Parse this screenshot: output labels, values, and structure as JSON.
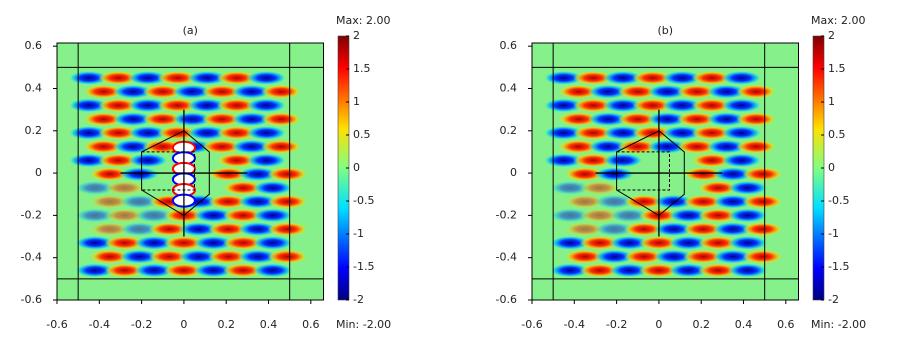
{
  "chart_data": [
    {
      "type": "field",
      "title": "(a)",
      "xlim": [
        -0.6,
        0.66
      ],
      "ylim": [
        -0.6,
        0.615
      ],
      "xticks": [
        -0.6,
        -0.4,
        -0.2,
        0,
        0.2,
        0.4,
        0.6
      ],
      "yticks": [
        -0.6,
        -0.4,
        -0.2,
        0,
        0.2,
        0.4,
        0.6
      ],
      "colorbar": {
        "lim": [
          -2,
          2
        ],
        "ticks": [
          -2,
          -1.5,
          -1,
          -0.5,
          0,
          0.5,
          1,
          1.5,
          2
        ],
        "max_label": "Max: 2.00",
        "min_label": "Min: -2.00"
      },
      "scatterer_field": true
    },
    {
      "type": "field",
      "title": "(b)",
      "xlim": [
        -0.6,
        0.66
      ],
      "ylim": [
        -0.6,
        0.615
      ],
      "xticks": [
        -0.6,
        -0.4,
        -0.2,
        0,
        0.2,
        0.4,
        0.6
      ],
      "yticks": [
        -0.6,
        -0.4,
        -0.2,
        0,
        0.2,
        0.4,
        0.6
      ],
      "colorbar": {
        "lim": [
          -2,
          2
        ],
        "ticks": [
          -2,
          -1.5,
          -1,
          -0.5,
          0,
          0.5,
          1,
          1.5,
          2
        ],
        "max_label": "Max: 2.00",
        "min_label": "Min: -2.00"
      },
      "scatterer_field": false
    }
  ]
}
